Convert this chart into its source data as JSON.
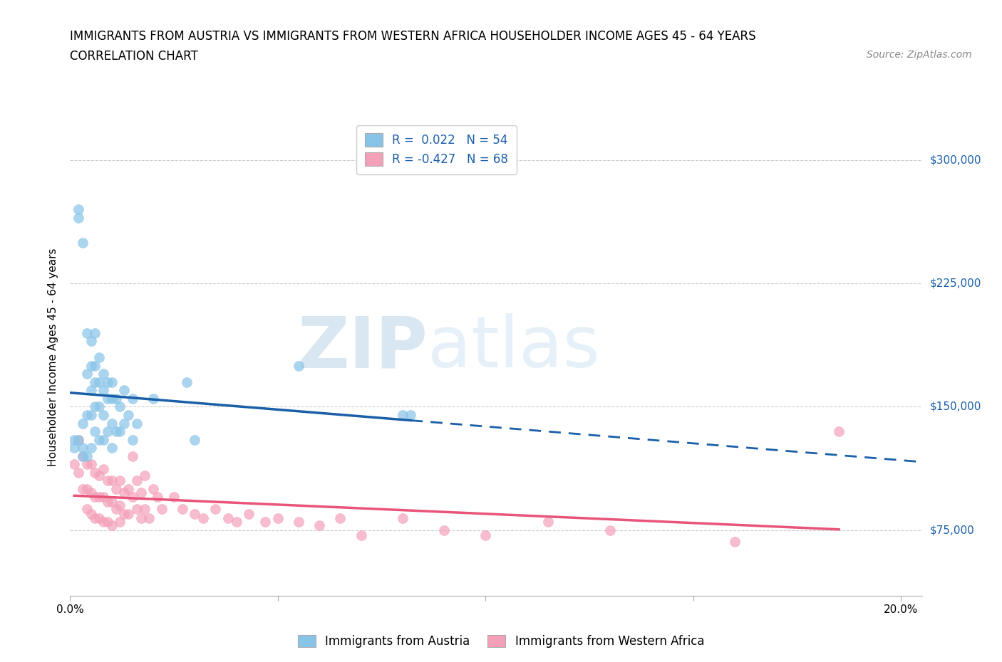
{
  "title_line1": "IMMIGRANTS FROM AUSTRIA VS IMMIGRANTS FROM WESTERN AFRICA HOUSEHOLDER INCOME AGES 45 - 64 YEARS",
  "title_line2": "CORRELATION CHART",
  "source": "Source: ZipAtlas.com",
  "ylabel": "Householder Income Ages 45 - 64 years",
  "xlim": [
    0.0,
    0.205
  ],
  "ylim": [
    35000,
    325000
  ],
  "yticks": [
    75000,
    150000,
    225000,
    300000
  ],
  "ytick_labels": [
    "$75,000",
    "$150,000",
    "$225,000",
    "$300,000"
  ],
  "xticks": [
    0.0,
    0.05,
    0.1,
    0.15,
    0.2
  ],
  "xtick_labels": [
    "0.0%",
    "",
    "",
    "",
    "20.0%"
  ],
  "watermark_ZIP": "ZIP",
  "watermark_atlas": "atlas",
  "legend_austria_r": "0.022",
  "legend_austria_n": "54",
  "legend_western_africa_r": "-0.427",
  "legend_western_africa_n": "68",
  "austria_color": "#88c4e8",
  "western_africa_color": "#f4a0b8",
  "austria_line_color": "#1a5fa8",
  "western_africa_line_color": "#e8547a",
  "austria_scatter_x": [
    0.001,
    0.001,
    0.002,
    0.002,
    0.002,
    0.003,
    0.003,
    0.003,
    0.003,
    0.004,
    0.004,
    0.004,
    0.004,
    0.005,
    0.005,
    0.005,
    0.005,
    0.005,
    0.006,
    0.006,
    0.006,
    0.006,
    0.006,
    0.007,
    0.007,
    0.007,
    0.007,
    0.008,
    0.008,
    0.008,
    0.008,
    0.009,
    0.009,
    0.009,
    0.01,
    0.01,
    0.01,
    0.01,
    0.011,
    0.011,
    0.012,
    0.012,
    0.013,
    0.013,
    0.014,
    0.015,
    0.015,
    0.016,
    0.02,
    0.028,
    0.03,
    0.055,
    0.08,
    0.082
  ],
  "austria_scatter_y": [
    130000,
    125000,
    270000,
    265000,
    130000,
    250000,
    140000,
    125000,
    120000,
    195000,
    170000,
    145000,
    120000,
    190000,
    175000,
    160000,
    145000,
    125000,
    195000,
    175000,
    165000,
    150000,
    135000,
    180000,
    165000,
    150000,
    130000,
    170000,
    160000,
    145000,
    130000,
    165000,
    155000,
    135000,
    165000,
    155000,
    140000,
    125000,
    155000,
    135000,
    150000,
    135000,
    160000,
    140000,
    145000,
    155000,
    130000,
    140000,
    155000,
    165000,
    130000,
    175000,
    145000,
    145000
  ],
  "western_africa_scatter_x": [
    0.001,
    0.002,
    0.002,
    0.003,
    0.003,
    0.004,
    0.004,
    0.004,
    0.005,
    0.005,
    0.005,
    0.006,
    0.006,
    0.006,
    0.007,
    0.007,
    0.007,
    0.008,
    0.008,
    0.008,
    0.009,
    0.009,
    0.009,
    0.01,
    0.01,
    0.01,
    0.011,
    0.011,
    0.012,
    0.012,
    0.012,
    0.013,
    0.013,
    0.014,
    0.014,
    0.015,
    0.015,
    0.016,
    0.016,
    0.017,
    0.017,
    0.018,
    0.018,
    0.019,
    0.02,
    0.021,
    0.022,
    0.025,
    0.027,
    0.03,
    0.032,
    0.035,
    0.038,
    0.04,
    0.043,
    0.047,
    0.05,
    0.055,
    0.06,
    0.065,
    0.07,
    0.08,
    0.09,
    0.1,
    0.115,
    0.13,
    0.16,
    0.185
  ],
  "western_africa_scatter_y": [
    115000,
    130000,
    110000,
    120000,
    100000,
    115000,
    100000,
    88000,
    115000,
    98000,
    85000,
    110000,
    95000,
    82000,
    108000,
    95000,
    82000,
    112000,
    95000,
    80000,
    105000,
    92000,
    80000,
    105000,
    92000,
    78000,
    100000,
    88000,
    105000,
    90000,
    80000,
    98000,
    85000,
    100000,
    85000,
    120000,
    95000,
    105000,
    88000,
    98000,
    82000,
    108000,
    88000,
    82000,
    100000,
    95000,
    88000,
    95000,
    88000,
    85000,
    82000,
    88000,
    82000,
    80000,
    85000,
    80000,
    82000,
    80000,
    78000,
    82000,
    72000,
    82000,
    75000,
    72000,
    80000,
    75000,
    68000,
    135000
  ]
}
